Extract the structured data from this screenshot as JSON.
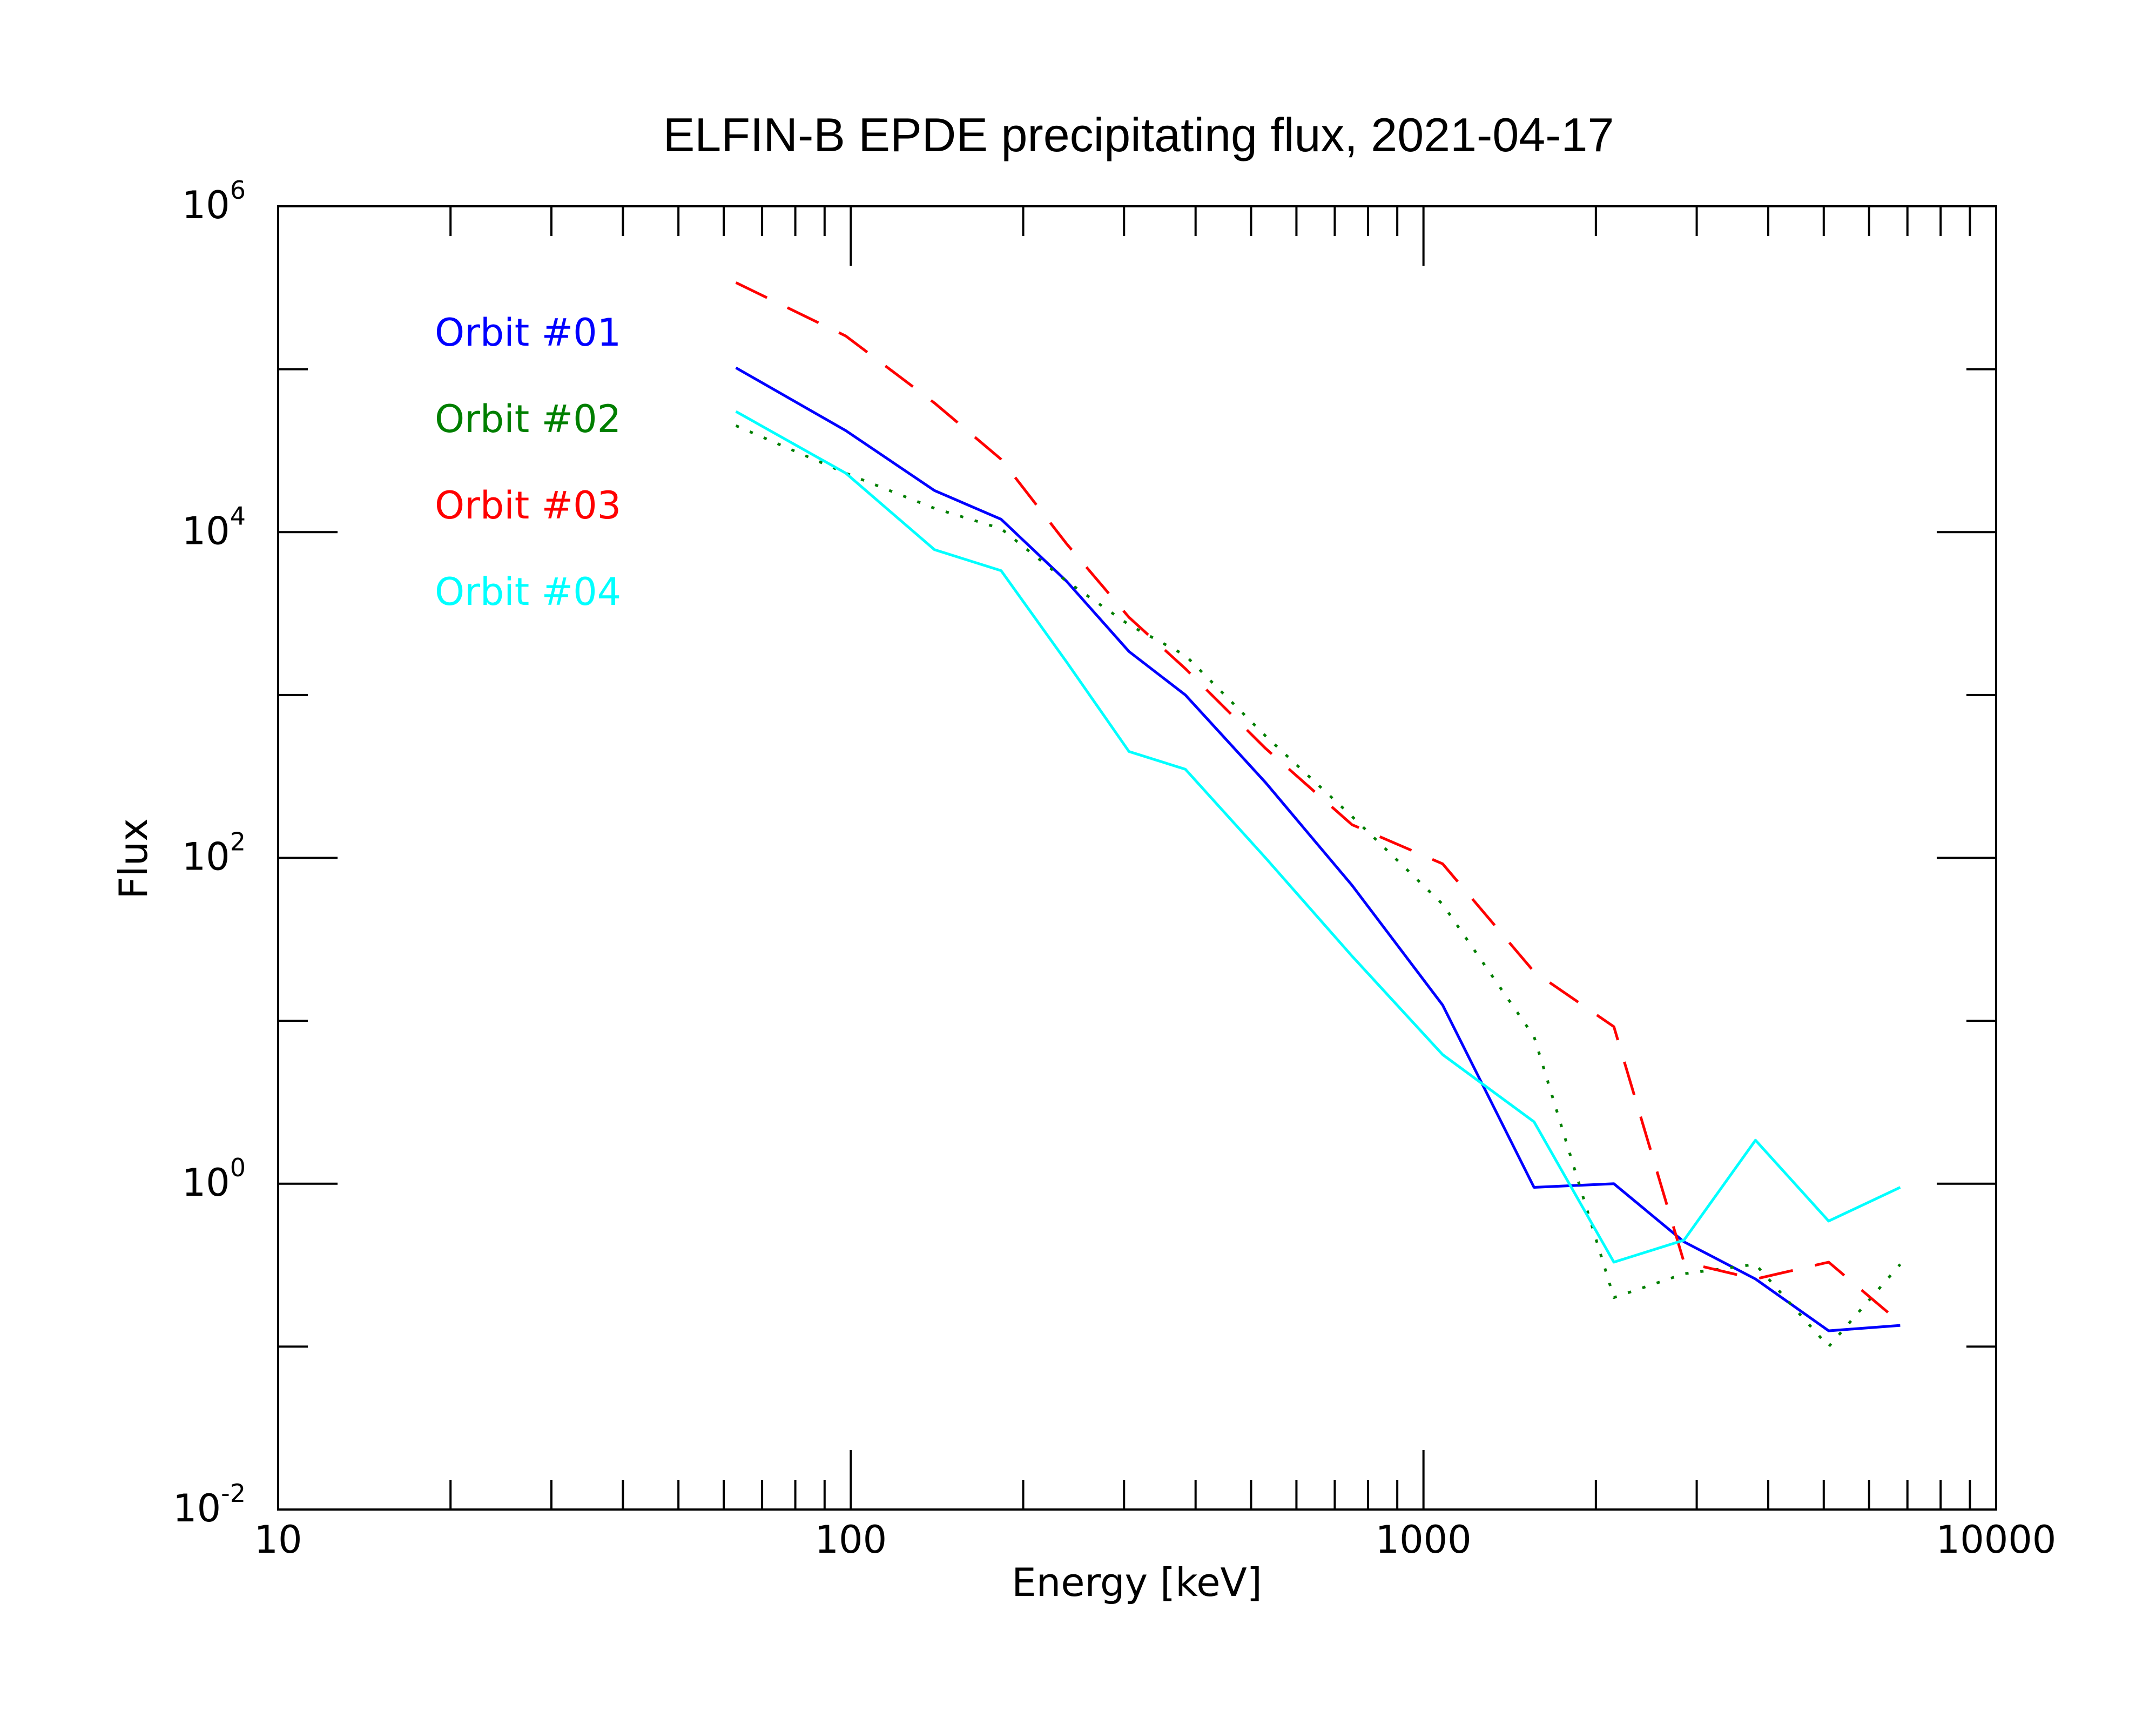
{
  "chart_data": {
    "type": "line",
    "title": "ELFIN-B EPDE precipitating flux, 2021-04-17",
    "xlabel": "Energy [keV]",
    "ylabel": "Flux",
    "x_scale": "log",
    "y_scale": "log",
    "xlim": [
      10,
      10000
    ],
    "ylim": [
      0.01,
      1000000
    ],
    "x_ticks": [
      {
        "value": 10,
        "label": "10"
      },
      {
        "value": 100,
        "label": "100"
      },
      {
        "value": 1000,
        "label": "1000"
      },
      {
        "value": 10000,
        "label": "10000"
      }
    ],
    "y_ticks": [
      {
        "value": 0.01,
        "base": "10",
        "exp": "-2"
      },
      {
        "value": 1,
        "base": "10",
        "exp": "0"
      },
      {
        "value": 100,
        "base": "10",
        "exp": "2"
      },
      {
        "value": 10000,
        "base": "10",
        "exp": "4"
      },
      {
        "value": 1000000,
        "base": "10",
        "exp": "6"
      }
    ],
    "grid": false,
    "legend_position": "top-left",
    "series": [
      {
        "name": "Orbit #01",
        "color": "#0000ff",
        "dash": "solid",
        "x": [
          63,
          98,
          140,
          183,
          238,
          306,
          384,
          530,
          750,
          1080,
          1560,
          2150,
          2850,
          3800,
          5100,
          6800
        ],
        "y": [
          102000,
          42000,
          18000,
          12000,
          5000,
          1850,
          1000,
          290,
          68,
          12.5,
          0.95,
          1.0,
          0.44,
          0.26,
          0.125,
          0.135
        ]
      },
      {
        "name": "Orbit #02",
        "color": "#007f00",
        "dash": "dotted",
        "x": [
          63,
          98,
          140,
          183,
          238,
          306,
          384,
          530,
          750,
          1080,
          1560,
          2150,
          2850,
          3800,
          5100,
          6800
        ],
        "y": [
          45000,
          23000,
          14000,
          10500,
          5000,
          2700,
          1750,
          560,
          180,
          52,
          8,
          0.2,
          0.28,
          0.32,
          0.1,
          0.32
        ]
      },
      {
        "name": "Orbit #03",
        "color": "#ff0000",
        "dash": "dashed",
        "x": [
          63,
          98,
          140,
          183,
          238,
          306,
          384,
          530,
          750,
          1080,
          1560,
          2150,
          2850,
          3800,
          5100,
          6800
        ],
        "y": [
          340000,
          160000,
          62000,
          28000,
          8500,
          3000,
          1450,
          470,
          160,
          92,
          20,
          9.2,
          0.33,
          0.26,
          0.33,
          0.14
        ]
      },
      {
        "name": "Orbit #04",
        "color": "#00ffff",
        "dash": "solid",
        "x": [
          63,
          98,
          140,
          183,
          238,
          306,
          384,
          530,
          750,
          1080,
          1560,
          2150,
          2850,
          3800,
          5100,
          6800
        ],
        "y": [
          55000,
          23000,
          7800,
          5800,
          1600,
          450,
          350,
          100,
          25,
          6.2,
          2.4,
          0.33,
          0.45,
          1.85,
          0.59,
          0.95
        ]
      }
    ]
  }
}
